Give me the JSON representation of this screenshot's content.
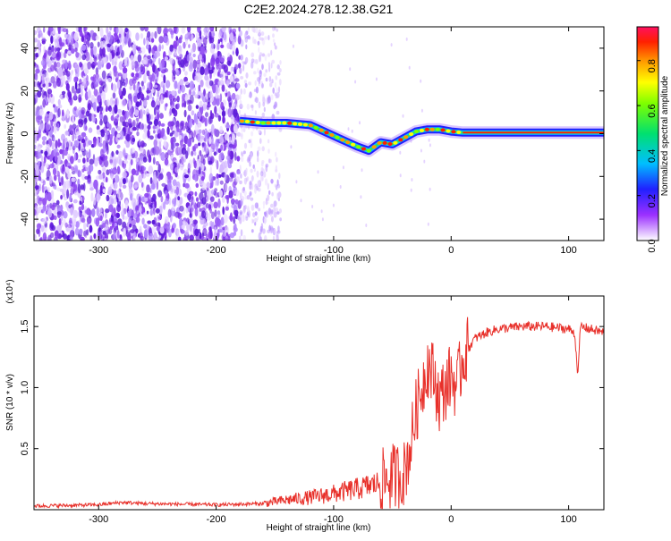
{
  "page": {
    "title": "C2E2.2024.278.12.38.G21"
  },
  "chart_data": [
    {
      "type": "heatmap",
      "title": "C2E2.2024.278.12.38.G21",
      "xlabel": "Height of straight line (km)",
      "ylabel": "Frequency (Hz)",
      "xlim": [
        -355,
        130
      ],
      "ylim": [
        -50,
        50
      ],
      "xticks": [
        -300,
        -200,
        -100,
        0,
        100
      ],
      "xtick_labels": [
        "-300",
        "-200",
        "-100",
        "0",
        "100"
      ],
      "yticks": [
        -40,
        -20,
        0,
        20,
        40
      ],
      "ytick_labels": [
        "-40",
        "-20",
        "0",
        "20",
        "40"
      ],
      "colorbar": {
        "label": "Normalized spectral amplitude",
        "range": [
          0,
          0.95
        ],
        "ticks": [
          0.0,
          0.2,
          0.4,
          0.6,
          0.8
        ],
        "tick_labels": [
          "0.0",
          "0.2",
          "0.4",
          "0.6",
          "0.8"
        ]
      },
      "noise_region": {
        "x": [
          -355,
          -180
        ],
        "density": "dense",
        "x_fade": [
          -180,
          -145
        ]
      },
      "carrier_track": {
        "x": [
          -180,
          -160,
          -140,
          -120,
          -100,
          -80,
          -70,
          -60,
          -50,
          -40,
          -30,
          -20,
          -10,
          0,
          10,
          50,
          100,
          130
        ],
        "y": [
          6,
          5,
          5,
          4,
          -1,
          -6,
          -8,
          -4,
          -5,
          -2,
          1,
          2,
          2,
          1,
          0.5,
          0.5,
          0.5,
          0.5
        ]
      }
    },
    {
      "type": "line",
      "xlabel": "Height of straight line (km)",
      "ylabel": "SNR (10 * v/v)",
      "multiplier": "(x10⁴)",
      "xlim": [
        -355,
        130
      ],
      "ylim": [
        0,
        1.75
      ],
      "xticks": [
        -300,
        -200,
        -100,
        0,
        100
      ],
      "xtick_labels": [
        "-300",
        "-200",
        "-100",
        "0",
        "100"
      ],
      "yticks": [
        0.5,
        1.0,
        1.5
      ],
      "ytick_labels": [
        "0.5",
        "1.0",
        "1.5"
      ],
      "series": [
        {
          "name": "SNR",
          "color": "#e8302a",
          "x": [
            -355,
            -300,
            -280,
            -260,
            -200,
            -160,
            -140,
            -120,
            -100,
            -80,
            -60,
            -50,
            -40,
            -35,
            -30,
            -25,
            -20,
            -15,
            -10,
            -5,
            0,
            5,
            10,
            20,
            30,
            40,
            60,
            80,
            100,
            105,
            108,
            110,
            130
          ],
          "y": [
            0.03,
            0.04,
            0.06,
            0.05,
            0.04,
            0.05,
            0.08,
            0.1,
            0.13,
            0.17,
            0.22,
            0.27,
            0.3,
            0.5,
            0.8,
            1.0,
            1.2,
            1.1,
            0.9,
            1.0,
            1.1,
            1.0,
            1.25,
            1.4,
            1.45,
            1.48,
            1.5,
            1.5,
            1.48,
            1.45,
            1.1,
            1.5,
            1.45
          ]
        }
      ]
    }
  ]
}
